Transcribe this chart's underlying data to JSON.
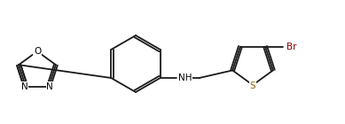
{
  "bg_color": "#ffffff",
  "bond_color": "#1a1a1a",
  "atom_colors": {
    "N": "#000000",
    "O": "#000000",
    "S": "#8B6914",
    "Br": "#8B0000",
    "H": "#000000"
  },
  "label_fontsize": 7.5,
  "fig_width": 3.89,
  "fig_height": 1.4,
  "dpi": 100
}
